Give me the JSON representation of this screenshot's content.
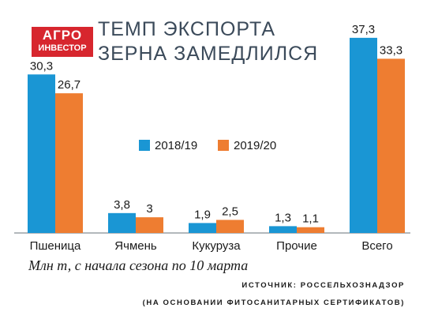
{
  "logo": {
    "line1": "АГРО",
    "line2": "ИНВЕСТОР"
  },
  "title": "ТЕМП ЭКСПОРТА ЗЕРНА ЗАМЕДЛИЛСЯ",
  "note": "Млн т, с начала сезона по 10 марта",
  "source": {
    "line1": "ИСТОЧНИК: РОССЕЛЬХОЗНАДЗОР",
    "line2": "(НА ОСНОВАНИИ ФИТОСАНИТАРНЫХ СЕРТИФИКАТОВ)"
  },
  "colors": {
    "s1": "#1a96d4",
    "s2": "#ee7d31",
    "axis": "#9aa0a6",
    "logo": "#d7262e"
  },
  "chart_data": {
    "type": "bar",
    "categories": [
      "Пшеница",
      "Ячмень",
      "Кукуруза",
      "Прочие",
      "Всего"
    ],
    "series": [
      {
        "name": "2018/19",
        "values": [
          30.3,
          3.8,
          1.9,
          1.3,
          37.3
        ]
      },
      {
        "name": "2019/20",
        "values": [
          26.7,
          3,
          2.5,
          1.1,
          33.3
        ]
      }
    ],
    "value_labels": [
      [
        "30,3",
        "3,8",
        "1,9",
        "1,3",
        "37,3"
      ],
      [
        "26,7",
        "3",
        "2,5",
        "1,1",
        "33,3"
      ]
    ],
    "ylim": [
      0,
      40
    ],
    "grid": false,
    "legend": "center"
  }
}
